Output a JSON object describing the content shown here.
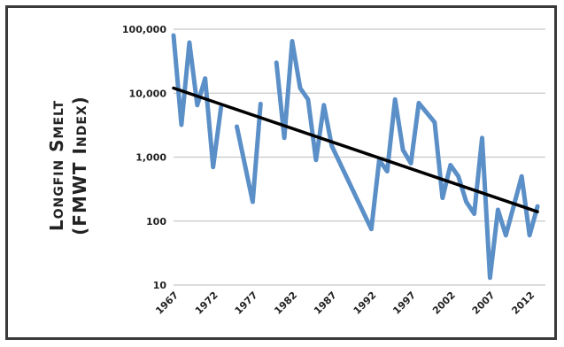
{
  "chart_data": {
    "type": "line",
    "title": "",
    "ylabel_line1": "Longfin Smelt",
    "ylabel_line2": "(FMWT Index)",
    "xlabel": "",
    "yscale": "log",
    "ylim": [
      10,
      100000
    ],
    "xlim": [
      1967,
      2014
    ],
    "grid": true,
    "y_tick_labels": [
      "10",
      "100",
      "1,000",
      "10,000",
      "100,000"
    ],
    "x_tick_labels": [
      "1967",
      "1972",
      "1977",
      "1982",
      "1987",
      "1992",
      "1997",
      "2002",
      "2007",
      "2012"
    ],
    "x_ticks": [
      1967,
      1972,
      1977,
      1982,
      1987,
      1992,
      1997,
      2002,
      2007,
      2012
    ],
    "y_ticks": [
      10,
      100,
      1000,
      10000,
      100000
    ],
    "series": [
      {
        "color": "#5b8fc7",
        "segments": [
          [
            [
              1967,
              80000
            ],
            [
              1968,
              3200
            ],
            [
              1969,
              62000
            ],
            [
              1970,
              6500
            ],
            [
              1971,
              17000
            ],
            [
              1972,
              700
            ],
            [
              1973,
              6000
            ]
          ],
          [
            [
              1975,
              3000
            ],
            [
              1977,
              200
            ],
            [
              1978,
              6800
            ]
          ],
          [
            [
              1980,
              30000
            ],
            [
              1981,
              2000
            ],
            [
              1982,
              65000
            ],
            [
              1983,
              12000
            ],
            [
              1984,
              8000
            ],
            [
              1985,
              900
            ],
            [
              1986,
              6500
            ],
            [
              1987,
              1500
            ],
            [
              1992,
              75
            ],
            [
              1993,
              900
            ],
            [
              1994,
              600
            ],
            [
              1995,
              8000
            ],
            [
              1996,
              1300
            ],
            [
              1997,
              800
            ],
            [
              1998,
              7000
            ],
            [
              2000,
              3500
            ],
            [
              2001,
              230
            ],
            [
              2002,
              750
            ],
            [
              2003,
              500
            ],
            [
              2004,
              200
            ],
            [
              2005,
              130
            ],
            [
              2006,
              2000
            ],
            [
              2007,
              13
            ],
            [
              2008,
              150
            ],
            [
              2009,
              60
            ],
            [
              2011,
              500
            ],
            [
              2012,
              60
            ],
            [
              2013,
              170
            ]
          ]
        ]
      },
      {
        "type": "trend",
        "color": "#000000",
        "points": [
          [
            1967,
            12000
          ],
          [
            2013,
            140
          ]
        ]
      }
    ]
  }
}
